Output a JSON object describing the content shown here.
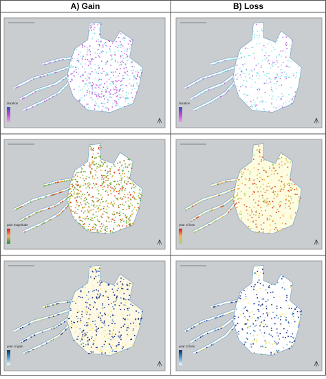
{
  "header": {
    "left": "A)  Gain",
    "right": "B)  Loss"
  },
  "panels": [
    {
      "legend": "duration",
      "gradient": [
        "#3b4cc0",
        "#c04bd6",
        "#f0a0f0"
      ],
      "dots": [
        "#7fe0e8",
        "#9ee7ee",
        "#d070e0",
        "#b060d8"
      ],
      "fill": "#ffffff",
      "density": 900
    },
    {
      "legend": "duration",
      "gradient": [
        "#3b4cc0",
        "#c04bd6",
        "#f0a0f0"
      ],
      "dots": [
        "#7fe0e8",
        "#9ee7ee",
        "#c070e0"
      ],
      "fill": "#ffffff",
      "density": 450
    },
    {
      "legend": "gain magnitude",
      "gradient": [
        "#d7191c",
        "#fdae61",
        "#1a9641"
      ],
      "dots": [
        "#5aa02c",
        "#7cb342",
        "#e8a020",
        "#d84020",
        "#a8c850"
      ],
      "fill": "#ffffff",
      "density": 1100
    },
    {
      "legend": "year of loss",
      "gradient": [
        "#d7191c",
        "#fdae61",
        "#a6d96a"
      ],
      "dots": [
        "#f0c040",
        "#e88030",
        "#d84020",
        "#9ccc50"
      ],
      "fill": "#fdfbe0",
      "density": 500
    },
    {
      "legend": "year of gain",
      "gradient": [
        "#08306b",
        "#4ba3d8",
        "#f7fbff"
      ],
      "dots": [
        "#1a2a7a",
        "#2c3e9a",
        "#4a90d0",
        "#f0e060"
      ],
      "fill": "#fdf9e4",
      "density": 650
    },
    {
      "legend": "year of loss",
      "gradient": [
        "#08306b",
        "#4ba3d8",
        "#f7fbff"
      ],
      "dots": [
        "#1a2a7a",
        "#2c3e9a",
        "#4a90d0",
        "#f0e060"
      ],
      "fill": "#ffffff",
      "density": 500
    }
  ]
}
